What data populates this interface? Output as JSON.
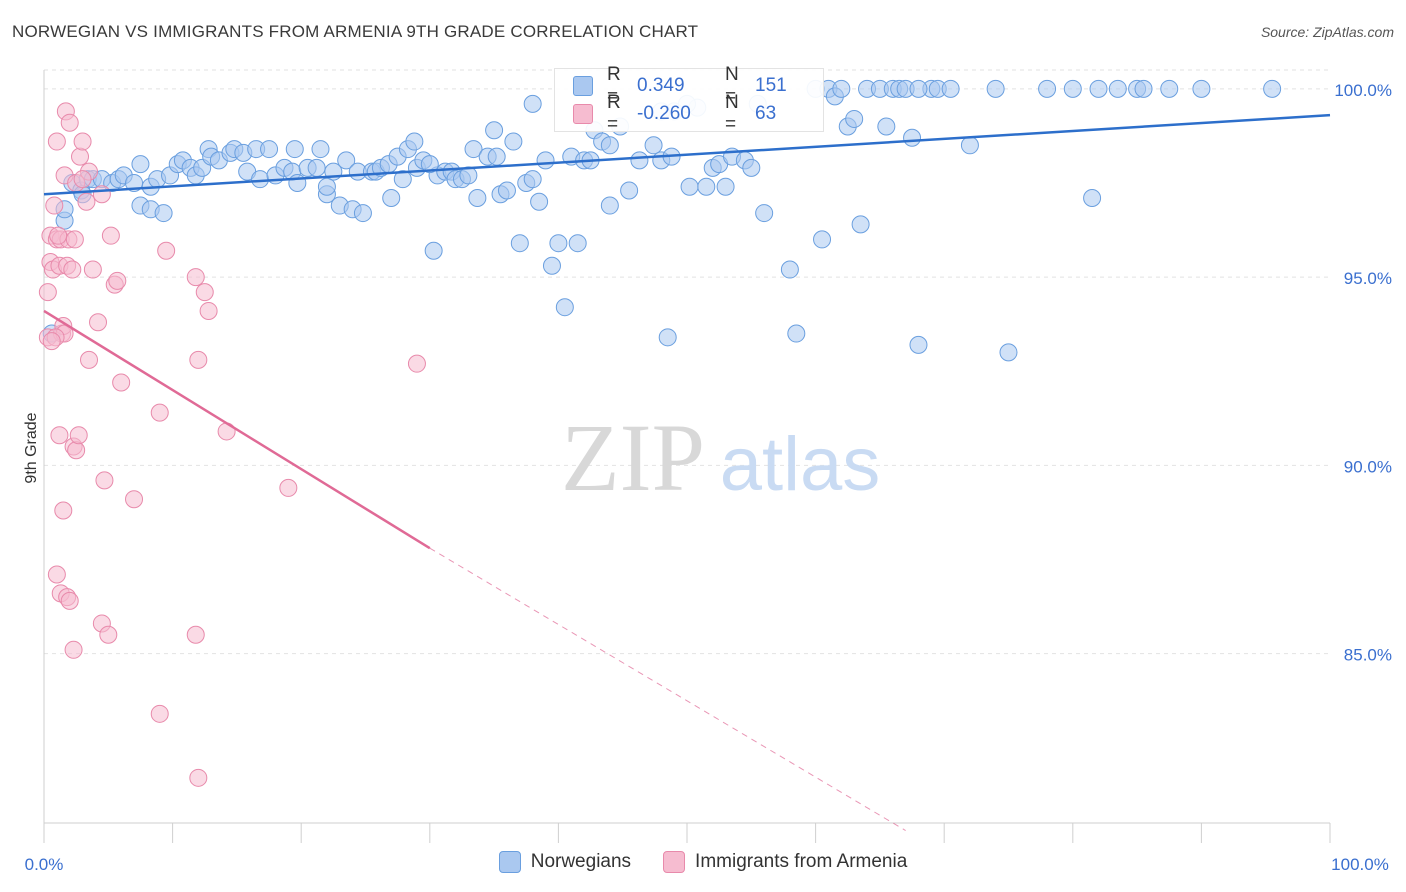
{
  "title": "NORWEGIAN VS IMMIGRANTS FROM ARMENIA 9TH GRADE CORRELATION CHART",
  "source": "Source: ZipAtlas.com",
  "watermark": {
    "zip": "ZIP",
    "atlas": "atlas"
  },
  "legend": {
    "r_label": "R =",
    "n_label": "N =",
    "blue": {
      "r": "0.349",
      "n": "151"
    },
    "pink": {
      "r": "-0.260",
      "n": "63"
    }
  },
  "colors": {
    "blue_fill": "#aac8f0",
    "blue_stroke": "#6a9fdf",
    "blue_line": "#2d6fcb",
    "pink_fill": "#f6bcd0",
    "pink_stroke": "#e88aab",
    "pink_line": "#e06a96",
    "tick_label": "#3a6fcf"
  },
  "chart_data": {
    "type": "scatter",
    "title": "NORWEGIAN VS IMMIGRANTS FROM ARMENIA 9TH GRADE CORRELATION CHART",
    "xlabel": "",
    "ylabel": "9th Grade",
    "xlim": [
      0,
      100
    ],
    "ylim": [
      80.5,
      100.5
    ],
    "x_tick_labels": [
      "0.0%",
      "100.0%"
    ],
    "y_ticks": [
      85,
      90,
      95,
      100
    ],
    "y_tick_labels": [
      "85.0%",
      "90.0%",
      "95.0%",
      "100.0%"
    ],
    "grid": "horizontal dashed",
    "legend_position": "top-center",
    "series": [
      {
        "name": "Norwegians",
        "color": "#aac8f0",
        "trend": {
          "x": [
            0,
            100
          ],
          "y": [
            97.2,
            99.3
          ],
          "style": "solid"
        },
        "points": [
          [
            0.6,
            93.5
          ],
          [
            1.6,
            96.5
          ],
          [
            1.6,
            96.8
          ],
          [
            2.2,
            97.5
          ],
          [
            2.9,
            97.3
          ],
          [
            3.4,
            97.6
          ],
          [
            3.8,
            97.6
          ],
          [
            4.5,
            97.6
          ],
          [
            5.3,
            97.5
          ],
          [
            5.8,
            97.6
          ],
          [
            6.2,
            97.7
          ],
          [
            7.0,
            97.5
          ],
          [
            7.5,
            96.9
          ],
          [
            7.5,
            98.0
          ],
          [
            8.3,
            96.8
          ],
          [
            8.3,
            97.4
          ],
          [
            8.8,
            97.6
          ],
          [
            9.3,
            96.7
          ],
          [
            9.8,
            97.7
          ],
          [
            10.4,
            98.0
          ],
          [
            10.8,
            98.1
          ],
          [
            11.4,
            97.9
          ],
          [
            11.8,
            97.7
          ],
          [
            12.3,
            97.9
          ],
          [
            12.8,
            98.4
          ],
          [
            13.0,
            98.2
          ],
          [
            13.6,
            98.1
          ],
          [
            14.5,
            98.3
          ],
          [
            14.8,
            98.4
          ],
          [
            15.5,
            98.3
          ],
          [
            15.8,
            97.8
          ],
          [
            16.5,
            98.4
          ],
          [
            16.8,
            97.6
          ],
          [
            17.5,
            98.4
          ],
          [
            18.0,
            97.7
          ],
          [
            18.7,
            97.9
          ],
          [
            19.3,
            97.8
          ],
          [
            19.5,
            98.4
          ],
          [
            19.7,
            97.5
          ],
          [
            20.5,
            97.9
          ],
          [
            21.2,
            97.9
          ],
          [
            21.5,
            98.4
          ],
          [
            22.0,
            97.2
          ],
          [
            22.5,
            97.8
          ],
          [
            23.0,
            96.9
          ],
          [
            23.5,
            98.1
          ],
          [
            24.0,
            96.8
          ],
          [
            24.4,
            97.8
          ],
          [
            24.8,
            96.7
          ],
          [
            25.5,
            97.8
          ],
          [
            25.8,
            97.8
          ],
          [
            26.2,
            97.9
          ],
          [
            26.8,
            98.0
          ],
          [
            27.0,
            97.1
          ],
          [
            27.5,
            98.2
          ],
          [
            27.9,
            97.6
          ],
          [
            28.3,
            98.4
          ],
          [
            28.8,
            98.6
          ],
          [
            29.0,
            97.9
          ],
          [
            29.5,
            98.1
          ],
          [
            30.3,
            95.7
          ],
          [
            30.6,
            97.7
          ],
          [
            31.2,
            97.8
          ],
          [
            31.7,
            97.8
          ],
          [
            32.0,
            97.6
          ],
          [
            32.5,
            97.6
          ],
          [
            33.0,
            97.7
          ],
          [
            33.4,
            98.4
          ],
          [
            33.7,
            97.1
          ],
          [
            34.5,
            98.2
          ],
          [
            35.0,
            98.9
          ],
          [
            35.2,
            98.2
          ],
          [
            35.5,
            97.2
          ],
          [
            36.0,
            97.3
          ],
          [
            36.5,
            98.6
          ],
          [
            37.0,
            95.9
          ],
          [
            37.5,
            97.5
          ],
          [
            38.0,
            97.6
          ],
          [
            38.5,
            97.0
          ],
          [
            39.0,
            98.1
          ],
          [
            39.5,
            95.3
          ],
          [
            40.0,
            95.9
          ],
          [
            40.5,
            94.2
          ],
          [
            41.0,
            98.2
          ],
          [
            41.5,
            95.9
          ],
          [
            42.0,
            98.1
          ],
          [
            42.5,
            98.1
          ],
          [
            42.8,
            98.9
          ],
          [
            43.4,
            98.6
          ],
          [
            44.0,
            96.9
          ],
          [
            44.8,
            99.0
          ],
          [
            45.5,
            97.3
          ],
          [
            46.3,
            98.1
          ],
          [
            47.4,
            98.5
          ],
          [
            48.0,
            98.1
          ],
          [
            48.5,
            93.4
          ],
          [
            48.8,
            98.2
          ],
          [
            49.0,
            99.4
          ],
          [
            50.2,
            97.4
          ],
          [
            50.8,
            99.5
          ],
          [
            51.5,
            97.4
          ],
          [
            52.0,
            97.9
          ],
          [
            52.5,
            98.0
          ],
          [
            53.0,
            97.4
          ],
          [
            53.5,
            98.2
          ],
          [
            54.5,
            98.1
          ],
          [
            55.0,
            97.9
          ],
          [
            55.5,
            99.6
          ],
          [
            56.0,
            96.7
          ],
          [
            58.5,
            93.5
          ],
          [
            58.0,
            95.2
          ],
          [
            60.5,
            96.0
          ],
          [
            60.0,
            100.0
          ],
          [
            61.0,
            100.0
          ],
          [
            61.5,
            99.8
          ],
          [
            62.0,
            100.0
          ],
          [
            62.5,
            99.0
          ],
          [
            63.0,
            99.2
          ],
          [
            63.5,
            96.4
          ],
          [
            64.0,
            100.0
          ],
          [
            65.0,
            100.0
          ],
          [
            65.5,
            99.0
          ],
          [
            66.0,
            100.0
          ],
          [
            66.5,
            100.0
          ],
          [
            67.0,
            100.0
          ],
          [
            67.5,
            98.7
          ],
          [
            68.0,
            93.2
          ],
          [
            69.0,
            100.0
          ],
          [
            69.5,
            100.0
          ],
          [
            70.5,
            100.0
          ],
          [
            72.0,
            98.5
          ],
          [
            74.0,
            100.0
          ],
          [
            78.0,
            100.0
          ],
          [
            80.0,
            100.0
          ],
          [
            81.5,
            97.1
          ],
          [
            82.0,
            100.0
          ],
          [
            83.5,
            100.0
          ],
          [
            85.0,
            100.0
          ],
          [
            85.5,
            100.0
          ],
          [
            87.5,
            100.0
          ],
          [
            90.0,
            100.0
          ],
          [
            95.5,
            100.0
          ],
          [
            75.0,
            93.0
          ],
          [
            68.0,
            100.0
          ],
          [
            50.0,
            99.6
          ],
          [
            48.0,
            99.4
          ],
          [
            44.0,
            98.5
          ],
          [
            38.0,
            99.6
          ],
          [
            30.0,
            98.0
          ],
          [
            22.0,
            97.4
          ],
          [
            3.0,
            97.2
          ]
        ]
      },
      {
        "name": "Immigrants from Armenia",
        "color": "#f6bcd0",
        "trend": {
          "x": [
            0,
            30
          ],
          "y": [
            94.1,
            87.8
          ],
          "style": "solid",
          "dashed_extension": {
            "x": [
              30,
              67
            ],
            "y": [
              87.8,
              80.3
            ]
          }
        },
        "points": [
          [
            0.3,
            93.4
          ],
          [
            0.3,
            94.6
          ],
          [
            0.5,
            95.4
          ],
          [
            0.5,
            96.1
          ],
          [
            0.7,
            95.2
          ],
          [
            0.8,
            96.9
          ],
          [
            1.0,
            96.0
          ],
          [
            1.0,
            98.6
          ],
          [
            1.2,
            95.3
          ],
          [
            1.3,
            96.0
          ],
          [
            1.4,
            93.5
          ],
          [
            1.5,
            93.7
          ],
          [
            1.6,
            97.7
          ],
          [
            1.7,
            99.4
          ],
          [
            1.8,
            95.3
          ],
          [
            1.9,
            96.0
          ],
          [
            2.0,
            99.1
          ],
          [
            2.2,
            95.2
          ],
          [
            2.5,
            97.5
          ],
          [
            2.8,
            98.2
          ],
          [
            3.0,
            98.6
          ],
          [
            3.3,
            97.0
          ],
          [
            3.5,
            97.8
          ],
          [
            3.8,
            95.2
          ],
          [
            4.2,
            93.8
          ],
          [
            4.5,
            97.2
          ],
          [
            5.2,
            96.1
          ],
          [
            5.5,
            94.8
          ],
          [
            5.7,
            94.9
          ],
          [
            9.0,
            91.4
          ],
          [
            9.5,
            95.7
          ],
          [
            11.8,
            95.0
          ],
          [
            12.0,
            92.8
          ],
          [
            12.5,
            94.6
          ],
          [
            12.8,
            94.1
          ],
          [
            14.2,
            90.9
          ],
          [
            19.0,
            89.4
          ],
          [
            29.0,
            92.7
          ],
          [
            1.2,
            90.8
          ],
          [
            1.5,
            88.8
          ],
          [
            2.3,
            90.5
          ],
          [
            2.5,
            90.4
          ],
          [
            2.7,
            90.8
          ],
          [
            3.5,
            92.8
          ],
          [
            4.7,
            89.6
          ],
          [
            6.0,
            92.2
          ],
          [
            7.0,
            89.1
          ],
          [
            1.0,
            87.1
          ],
          [
            1.3,
            86.6
          ],
          [
            1.8,
            86.5
          ],
          [
            2.0,
            86.4
          ],
          [
            4.5,
            85.8
          ],
          [
            5.0,
            85.5
          ],
          [
            2.3,
            85.1
          ],
          [
            11.8,
            85.5
          ],
          [
            9.0,
            83.4
          ],
          [
            12.0,
            81.7
          ],
          [
            1.6,
            93.5
          ],
          [
            0.9,
            93.4
          ],
          [
            0.6,
            93.3
          ],
          [
            1.1,
            96.1
          ],
          [
            2.4,
            96.0
          ],
          [
            3.0,
            97.6
          ]
        ]
      }
    ]
  }
}
